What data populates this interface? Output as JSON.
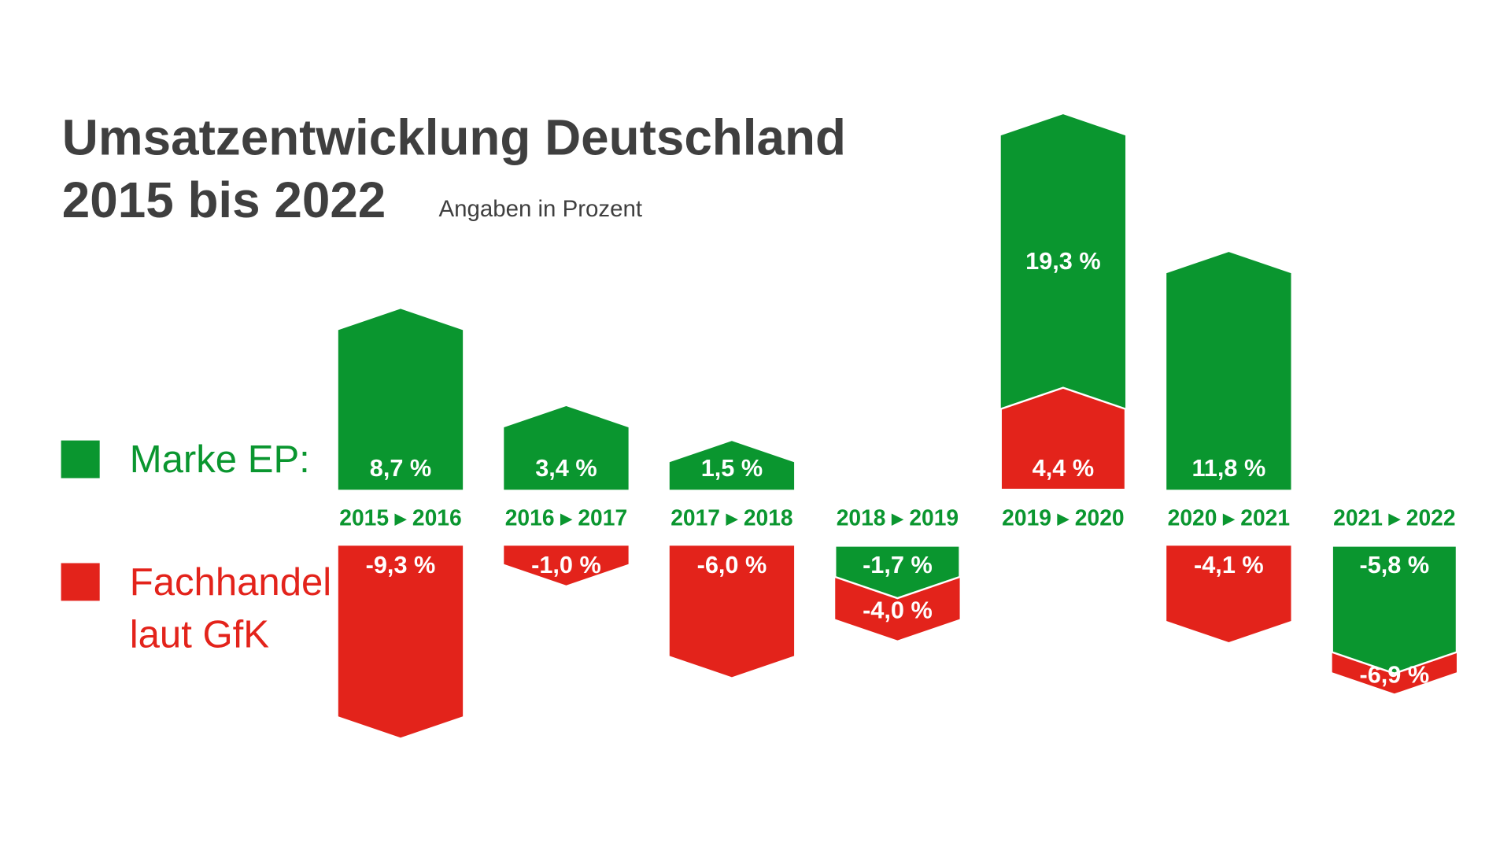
{
  "colors": {
    "marke_ep": "#0a962f",
    "fachhandel": "#e3231b",
    "title": "#3f3f3f"
  },
  "chart_data": {
    "type": "bar",
    "title_line1": "Umsatzentwicklung Deutschland",
    "title_line2": "2015 bis 2022",
    "subtitle": "Angaben in Prozent",
    "categories": [
      "2015 ▸ 2016",
      "2016 ▸ 2017",
      "2017 ▸ 2018",
      "2018 ▸ 2019",
      "2019 ▸ 2020",
      "2020 ▸ 2021",
      "2021 ▸ 2022"
    ],
    "series": [
      {
        "name": "Marke EP:",
        "values": [
          8.7,
          3.4,
          1.5,
          -1.7,
          19.3,
          11.8,
          -5.8
        ],
        "labels": [
          "8,7 %",
          "3,4 %",
          "1,5 %",
          "-1,7 %",
          "19,3 %",
          "11,8 %",
          "-5,8 %"
        ]
      },
      {
        "name": "Fachhandel laut GfK",
        "name_line1": "Fachhandel",
        "name_line2": "laut GfK",
        "values": [
          -9.3,
          -1.0,
          -6.0,
          -4.0,
          4.4,
          -4.1,
          -6.9
        ],
        "labels": [
          "-9,3 %",
          "-1,0 %",
          "-6,0 %",
          "-4,0 %",
          "4,4 %",
          "-4,1 %",
          "-6,9 %"
        ]
      }
    ],
    "legend_position": "left",
    "grid": false,
    "axes_visible": false
  }
}
